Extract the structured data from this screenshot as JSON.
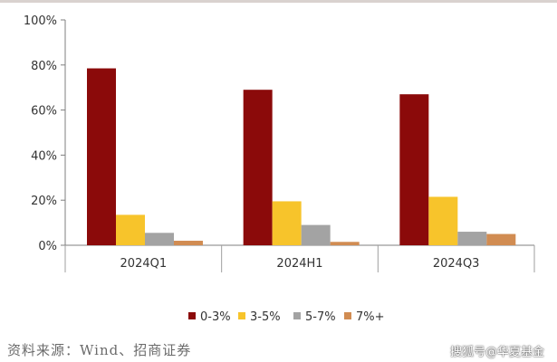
{
  "chart_data": {
    "type": "bar",
    "categories": [
      "2024Q1",
      "2024H1",
      "2024Q3"
    ],
    "series": [
      {
        "name": "0-3%",
        "values": [
          78.5,
          69.0,
          67.0
        ],
        "color": "#8b0a0a"
      },
      {
        "name": "3-5%",
        "values": [
          13.5,
          19.5,
          21.5
        ],
        "color": "#f7c42b"
      },
      {
        "name": "5-7%",
        "values": [
          5.5,
          9.0,
          6.0
        ],
        "color": "#a3a3a3"
      },
      {
        "name": "7%+",
        "values": [
          2.0,
          1.5,
          5.0
        ],
        "color": "#d18c52"
      }
    ],
    "ylim": [
      0,
      100
    ],
    "yticks": [
      "0%",
      "20%",
      "40%",
      "60%",
      "80%",
      "100%"
    ],
    "ytick_values": [
      0,
      20,
      40,
      60,
      80,
      100
    ],
    "grid": false,
    "legend_position": "bottom-right"
  },
  "source_text": "资料来源：Wind、招商证券",
  "watermark_text": "搜狐号@华夏基金"
}
